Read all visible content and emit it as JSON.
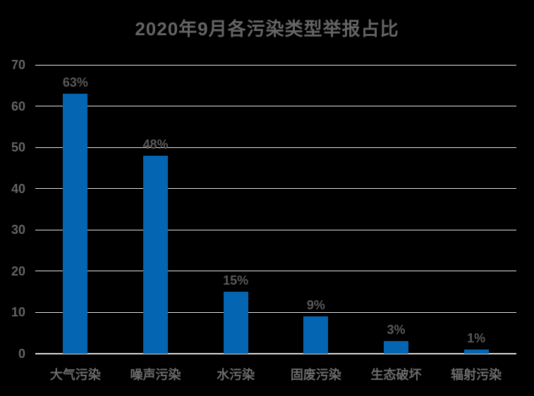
{
  "chart_data": {
    "type": "bar",
    "title": "2020年9月各污染类型举报占比",
    "categories": [
      "大气污染",
      "噪声污染",
      "水污染",
      "固废污染",
      "生态破坏",
      "辐射污染"
    ],
    "values": [
      63,
      48,
      15,
      9,
      3,
      1
    ],
    "value_labels": [
      "63%",
      "48%",
      "15%",
      "9%",
      "3%",
      "1%"
    ],
    "xlabel": "",
    "ylabel": "",
    "ylim": [
      0,
      70
    ],
    "yticks": [
      0,
      10,
      20,
      30,
      40,
      50,
      60,
      70
    ],
    "grid": "horizontal",
    "legend": "none",
    "colors": {
      "background": "#000000",
      "bar": "#0465B2",
      "gridline": "#E3E3E3",
      "axis_line": "#D9D9D9",
      "title_text": "#646464",
      "tick_text": "#646464",
      "value_label_text": "#595959",
      "category_text": "#6B6B6B"
    }
  }
}
